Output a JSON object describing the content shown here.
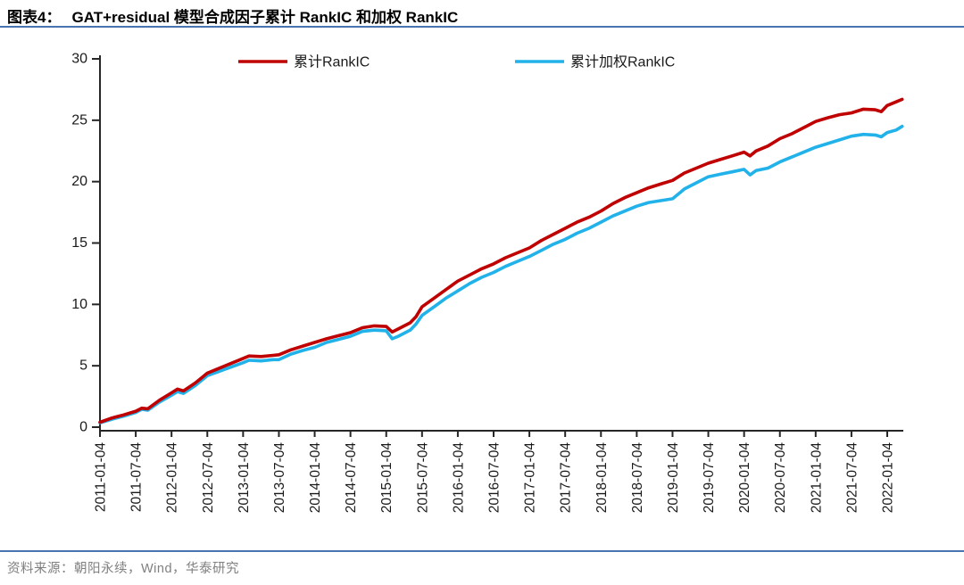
{
  "header": {
    "figure_label": "图表4：",
    "title": "GAT+residual 模型合成因子累计 RankIC 和加权 RankIC"
  },
  "footer": {
    "source": "资料来源：朝阳永续，Wind，华泰研究"
  },
  "colors": {
    "accent_divider": "#4A74AE",
    "red_series": "#C00000",
    "blue_series": "#22B2EA",
    "axis": "#262626",
    "footer_text": "#808080"
  },
  "chart_data": {
    "type": "line",
    "title": "",
    "xlabel": "",
    "ylabel": "",
    "ylim": [
      0,
      30
    ],
    "grid": false,
    "legend_position": "top",
    "y_ticks": [
      0,
      5,
      10,
      15,
      20,
      25,
      30
    ],
    "x_tick_labels": [
      "2011-01-04",
      "2011-07-04",
      "2012-01-04",
      "2012-07-04",
      "2013-01-04",
      "2013-07-04",
      "2014-01-04",
      "2014-07-04",
      "2015-01-04",
      "2015-07-04",
      "2016-01-04",
      "2016-07-04",
      "2017-01-04",
      "2017-07-04",
      "2018-01-04",
      "2018-07-04",
      "2019-01-04",
      "2019-07-04",
      "2020-01-04",
      "2020-07-04",
      "2021-01-04",
      "2021-07-04",
      "2022-01-04"
    ],
    "x_tick_interval_months": 6,
    "x_axis_note": "t = months since 2011-01-04",
    "series": [
      {
        "name": "累计RankIC",
        "color": "#C00000",
        "t": [
          0,
          2,
          4,
          6,
          7,
          8,
          10,
          12,
          13,
          14,
          16,
          18,
          20,
          22,
          24,
          25,
          27,
          29,
          30,
          32,
          34,
          36,
          38,
          40,
          42,
          44,
          46,
          48,
          49,
          50,
          52,
          53,
          54,
          56,
          58,
          60,
          62,
          64,
          66,
          68,
          70,
          72,
          74,
          76,
          78,
          80,
          82,
          84,
          86,
          88,
          90,
          92,
          94,
          96,
          98,
          100,
          102,
          104,
          106,
          108,
          109,
          110,
          112,
          114,
          116,
          118,
          120,
          122,
          124,
          126,
          128,
          130,
          131,
          132,
          133.5,
          134.5
        ],
        "values": [
          0.4,
          0.75,
          1.0,
          1.3,
          1.55,
          1.5,
          2.2,
          2.8,
          3.1,
          2.95,
          3.6,
          4.4,
          4.8,
          5.2,
          5.6,
          5.8,
          5.75,
          5.85,
          5.9,
          6.3,
          6.6,
          6.9,
          7.2,
          7.45,
          7.7,
          8.1,
          8.25,
          8.2,
          7.75,
          8.0,
          8.5,
          9.0,
          9.8,
          10.5,
          11.2,
          11.9,
          12.4,
          12.9,
          13.3,
          13.8,
          14.2,
          14.6,
          15.2,
          15.7,
          16.2,
          16.7,
          17.1,
          17.6,
          18.2,
          18.7,
          19.1,
          19.5,
          19.8,
          20.1,
          20.7,
          21.1,
          21.5,
          21.8,
          22.1,
          22.4,
          22.1,
          22.5,
          22.9,
          23.5,
          23.9,
          24.4,
          24.9,
          25.2,
          25.45,
          25.6,
          25.9,
          25.85,
          25.7,
          26.2,
          26.5,
          26.7
        ]
      },
      {
        "name": "累计加权RankIC",
        "color": "#22B2EA",
        "t": [
          0,
          2,
          4,
          6,
          7,
          8,
          10,
          12,
          13,
          14,
          16,
          18,
          20,
          22,
          24,
          25,
          27,
          29,
          30,
          32,
          34,
          36,
          38,
          40,
          42,
          44,
          46,
          48,
          49,
          50,
          52,
          53,
          54,
          56,
          58,
          60,
          62,
          64,
          66,
          68,
          70,
          72,
          74,
          76,
          78,
          80,
          82,
          84,
          86,
          88,
          90,
          92,
          94,
          96,
          98,
          100,
          102,
          104,
          106,
          108,
          109,
          110,
          112,
          114,
          116,
          118,
          120,
          122,
          124,
          126,
          128,
          130,
          131,
          132,
          133.5,
          134.5
        ],
        "values": [
          0.35,
          0.65,
          0.9,
          1.2,
          1.45,
          1.38,
          2.05,
          2.6,
          2.9,
          2.75,
          3.4,
          4.2,
          4.55,
          4.9,
          5.25,
          5.45,
          5.4,
          5.5,
          5.5,
          5.95,
          6.25,
          6.5,
          6.9,
          7.15,
          7.4,
          7.8,
          7.9,
          7.85,
          7.2,
          7.4,
          7.9,
          8.4,
          9.1,
          9.8,
          10.5,
          11.1,
          11.7,
          12.2,
          12.6,
          13.1,
          13.5,
          13.9,
          14.4,
          14.9,
          15.3,
          15.8,
          16.2,
          16.7,
          17.2,
          17.6,
          18.0,
          18.3,
          18.45,
          18.6,
          19.4,
          19.9,
          20.4,
          20.6,
          20.8,
          21.0,
          20.55,
          20.9,
          21.1,
          21.6,
          22.0,
          22.4,
          22.8,
          23.1,
          23.4,
          23.7,
          23.85,
          23.8,
          23.65,
          24.0,
          24.2,
          24.5
        ]
      }
    ]
  }
}
